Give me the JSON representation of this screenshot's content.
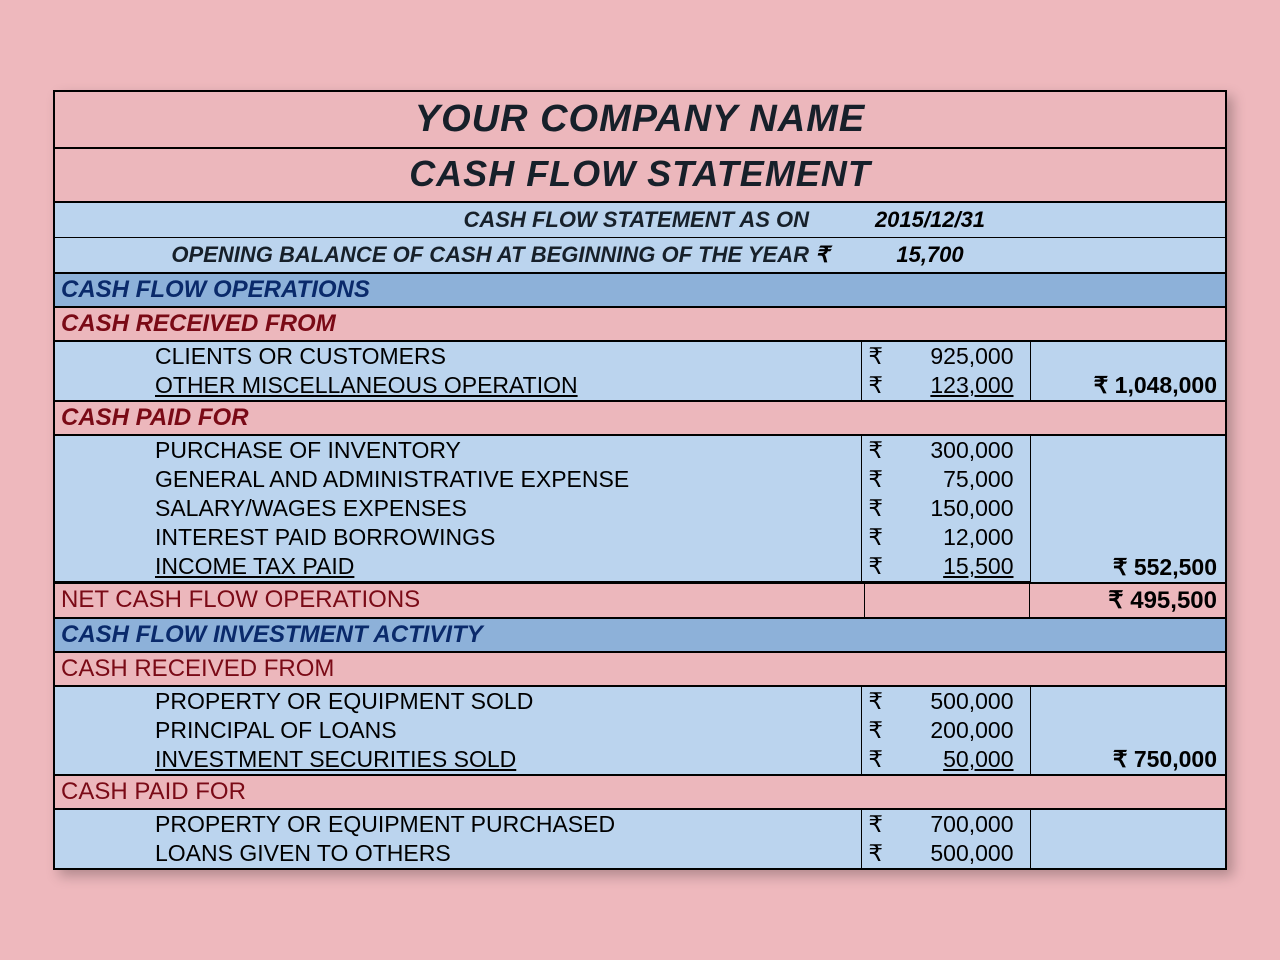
{
  "colors": {
    "page_bg": "#eeb8bd",
    "pink": "#ecb7bc",
    "blue": "#bbd4ee",
    "ops_blue": "#8db1d9",
    "border": "#000000",
    "section_text": "#0a2a6b",
    "maroon_text": "#7a0a16"
  },
  "typography": {
    "title_fontsize": 38,
    "subtitle_fontsize": 36,
    "section_fontsize": 24,
    "body_fontsize": 23,
    "italic_headers": true,
    "bold_headers": true
  },
  "currency_symbol": "₹",
  "header": {
    "company": "YOUR COMPANY NAME",
    "title": "CASH FLOW STATEMENT",
    "as_on_label": "CASH FLOW STATEMENT AS ON",
    "as_on_date": "2015/12/31",
    "opening_label": "OPENING BALANCE OF CASH AT BEGINNING OF THE YEAR",
    "opening_value": "15,700"
  },
  "sections": {
    "operations": {
      "title": "CASH FLOW OPERATIONS",
      "received": {
        "label": "CASH RECEIVED FROM",
        "items": [
          {
            "label": "CLIENTS OR CUSTOMERS",
            "amount": "925,000"
          },
          {
            "label": "OTHER MISCELLANEOUS OPERATION",
            "amount": "123,000"
          }
        ],
        "subtotal": "₹ 1,048,000"
      },
      "paid": {
        "label": "CASH PAID FOR",
        "items": [
          {
            "label": "PURCHASE OF INVENTORY",
            "amount": "300,000"
          },
          {
            "label": "GENERAL AND ADMINISTRATIVE EXPENSE",
            "amount": "75,000"
          },
          {
            "label": "SALARY/WAGES EXPENSES",
            "amount": "150,000"
          },
          {
            "label": "INTEREST PAID BORROWINGS",
            "amount": "12,000"
          },
          {
            "label": "INCOME TAX PAID",
            "amount": "15,500"
          }
        ],
        "subtotal": "₹ 552,500"
      },
      "net_label": "NET CASH FLOW OPERATIONS",
      "net_total": "₹ 495,500"
    },
    "investment": {
      "title": "CASH FLOW INVESTMENT ACTIVITY",
      "received": {
        "label": "CASH RECEIVED FROM",
        "items": [
          {
            "label": "PROPERTY OR EQUIPMENT SOLD",
            "amount": "500,000"
          },
          {
            "label": "PRINCIPAL OF LOANS",
            "amount": "200,000"
          },
          {
            "label": "INVESTMENT SECURITIES SOLD",
            "amount": "50,000"
          }
        ],
        "subtotal": "₹ 750,000"
      },
      "paid": {
        "label": "CASH PAID FOR",
        "items": [
          {
            "label": "PROPERTY OR EQUIPMENT PURCHASED",
            "amount": "700,000"
          },
          {
            "label": "LOANS GIVEN TO OTHERS",
            "amount": "500,000"
          }
        ]
      }
    }
  }
}
